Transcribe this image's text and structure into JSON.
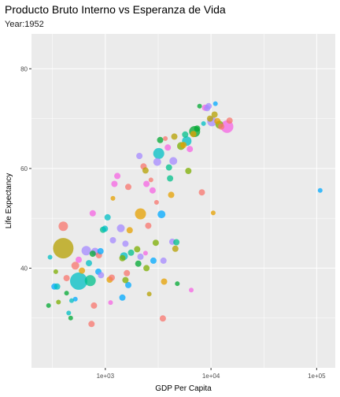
{
  "chart_data": {
    "type": "scatter",
    "title": "Producto Bruto Interno vs Esperanza de Vida",
    "subtitle": "Year:1952",
    "xlabel": "GDP Per Capita",
    "ylabel": "Life Expectancy",
    "x_scale": "log10",
    "xlim": [
      200,
      150000
    ],
    "ylim": [
      20,
      87
    ],
    "x_ticks": [
      {
        "value": 1000,
        "label": "1e+03"
      },
      {
        "value": 10000,
        "label": "1e+04"
      },
      {
        "value": 100000,
        "label": "1e+05"
      }
    ],
    "y_ticks": [
      {
        "value": 40,
        "label": "40"
      },
      {
        "value": 60,
        "label": "60"
      },
      {
        "value": 80,
        "label": "80"
      }
    ],
    "grid": true,
    "legend": "none",
    "background": "#ebebeb",
    "grid_color": "#ffffff",
    "marker_opacity": 0.75,
    "colors": {
      "olive": "#b5a000",
      "teal": "#00bfc4",
      "green": "#00a832",
      "pink": "#f8766d",
      "magenta": "#f564e3",
      "purple": "#a58aff",
      "blue": "#00a9ff",
      "orange": "#e6a000",
      "lime": "#7cae00",
      "mint": "#00c08b"
    },
    "points": [
      {
        "x": 400,
        "y": 44,
        "size": 13,
        "color": "olive"
      },
      {
        "x": 560,
        "y": 37.4,
        "size": 11,
        "color": "teal"
      },
      {
        "x": 720,
        "y": 37.5,
        "size": 7,
        "color": "mint"
      },
      {
        "x": 660,
        "y": 43.5,
        "size": 6,
        "color": "purple"
      },
      {
        "x": 400,
        "y": 48.4,
        "size": 6,
        "color": "pink"
      },
      {
        "x": 330,
        "y": 36.3,
        "size": 4,
        "color": "blue"
      },
      {
        "x": 350,
        "y": 36.3,
        "size": 4,
        "color": "teal"
      },
      {
        "x": 300,
        "y": 42.2,
        "size": 3,
        "color": "teal"
      },
      {
        "x": 340,
        "y": 39.3,
        "size": 3,
        "color": "lime"
      },
      {
        "x": 290,
        "y": 32.5,
        "size": 3,
        "color": "green"
      },
      {
        "x": 360,
        "y": 33.2,
        "size": 3,
        "color": "lime"
      },
      {
        "x": 430,
        "y": 35,
        "size": 3,
        "color": "green"
      },
      {
        "x": 450,
        "y": 31,
        "size": 3,
        "color": "teal"
      },
      {
        "x": 470,
        "y": 30,
        "size": 3,
        "color": "green"
      },
      {
        "x": 520,
        "y": 33.8,
        "size": 3,
        "color": "blue"
      },
      {
        "x": 480,
        "y": 33.5,
        "size": 3,
        "color": "teal"
      },
      {
        "x": 430,
        "y": 38,
        "size": 4,
        "color": "pink"
      },
      {
        "x": 520,
        "y": 40.5,
        "size": 5,
        "color": "pink"
      },
      {
        "x": 600,
        "y": 39.5,
        "size": 4,
        "color": "orange"
      },
      {
        "x": 560,
        "y": 41.7,
        "size": 4,
        "color": "magenta"
      },
      {
        "x": 700,
        "y": 41,
        "size": 4,
        "color": "teal"
      },
      {
        "x": 760,
        "y": 42.9,
        "size": 4,
        "color": "green"
      },
      {
        "x": 800,
        "y": 43.3,
        "size": 5,
        "color": "purple"
      },
      {
        "x": 870,
        "y": 42.6,
        "size": 4,
        "color": "pink"
      },
      {
        "x": 900,
        "y": 43.4,
        "size": 4,
        "color": "blue"
      },
      {
        "x": 760,
        "y": 51,
        "size": 4,
        "color": "magenta"
      },
      {
        "x": 780,
        "y": 32.5,
        "size": 4,
        "color": "pink"
      },
      {
        "x": 740,
        "y": 28.8,
        "size": 4,
        "color": "pink"
      },
      {
        "x": 860,
        "y": 39.3,
        "size": 4,
        "color": "blue"
      },
      {
        "x": 910,
        "y": 38.6,
        "size": 4,
        "color": "purple"
      },
      {
        "x": 950,
        "y": 47.7,
        "size": 4,
        "color": "mint"
      },
      {
        "x": 990,
        "y": 47.9,
        "size": 4,
        "color": "teal"
      },
      {
        "x": 1050,
        "y": 50.2,
        "size": 4,
        "color": "teal"
      },
      {
        "x": 1100,
        "y": 37.7,
        "size": 4,
        "color": "orange"
      },
      {
        "x": 1150,
        "y": 38.1,
        "size": 4,
        "color": "pink"
      },
      {
        "x": 1120,
        "y": 33.1,
        "size": 3,
        "color": "magenta"
      },
      {
        "x": 1180,
        "y": 45.6,
        "size": 4,
        "color": "purple"
      },
      {
        "x": 1220,
        "y": 56.9,
        "size": 4,
        "color": "magenta"
      },
      {
        "x": 1300,
        "y": 58.5,
        "size": 4,
        "color": "magenta"
      },
      {
        "x": 1180,
        "y": 54,
        "size": 3,
        "color": "orange"
      },
      {
        "x": 1400,
        "y": 48,
        "size": 5,
        "color": "purple"
      },
      {
        "x": 1450,
        "y": 42,
        "size": 4,
        "color": "lime"
      },
      {
        "x": 1500,
        "y": 42.4,
        "size": 5,
        "color": "teal"
      },
      {
        "x": 1550,
        "y": 44.9,
        "size": 4,
        "color": "purple"
      },
      {
        "x": 1600,
        "y": 39,
        "size": 4,
        "color": "pink"
      },
      {
        "x": 1650,
        "y": 36.6,
        "size": 4,
        "color": "blue"
      },
      {
        "x": 1550,
        "y": 37.6,
        "size": 4,
        "color": "lime"
      },
      {
        "x": 1450,
        "y": 34.1,
        "size": 4,
        "color": "blue"
      },
      {
        "x": 1700,
        "y": 47.6,
        "size": 4,
        "color": "orange"
      },
      {
        "x": 1750,
        "y": 43.1,
        "size": 4,
        "color": "mint"
      },
      {
        "x": 1650,
        "y": 56.3,
        "size": 4,
        "color": "pink"
      },
      {
        "x": 2000,
        "y": 43.8,
        "size": 4,
        "color": "lime"
      },
      {
        "x": 2150,
        "y": 42.3,
        "size": 4,
        "color": "purple"
      },
      {
        "x": 2150,
        "y": 50.9,
        "size": 7,
        "color": "orange"
      },
      {
        "x": 2050,
        "y": 40.9,
        "size": 4,
        "color": "green"
      },
      {
        "x": 2100,
        "y": 62.5,
        "size": 4,
        "color": "purple"
      },
      {
        "x": 2300,
        "y": 60.4,
        "size": 4,
        "color": "pink"
      },
      {
        "x": 2400,
        "y": 59.6,
        "size": 4,
        "color": "olive"
      },
      {
        "x": 2450,
        "y": 56.9,
        "size": 4,
        "color": "magenta"
      },
      {
        "x": 2550,
        "y": 48.5,
        "size": 4,
        "color": "pink"
      },
      {
        "x": 2400,
        "y": 43,
        "size": 3,
        "color": "magenta"
      },
      {
        "x": 2450,
        "y": 40,
        "size": 4,
        "color": "lime"
      },
      {
        "x": 2600,
        "y": 34.8,
        "size": 3,
        "color": "olive"
      },
      {
        "x": 2700,
        "y": 57.7,
        "size": 3,
        "color": "pink"
      },
      {
        "x": 2800,
        "y": 55.6,
        "size": 4,
        "color": "magenta"
      },
      {
        "x": 2850,
        "y": 41.5,
        "size": 4,
        "color": "blue"
      },
      {
        "x": 3000,
        "y": 45.1,
        "size": 4,
        "color": "lime"
      },
      {
        "x": 3050,
        "y": 53.2,
        "size": 3,
        "color": "pink"
      },
      {
        "x": 3100,
        "y": 61.3,
        "size": 5,
        "color": "purple"
      },
      {
        "x": 3200,
        "y": 63,
        "size": 7,
        "color": "teal"
      },
      {
        "x": 3300,
        "y": 65.7,
        "size": 4,
        "color": "green"
      },
      {
        "x": 3400,
        "y": 50.8,
        "size": 5,
        "color": "blue"
      },
      {
        "x": 3500,
        "y": 29.9,
        "size": 4,
        "color": "pink"
      },
      {
        "x": 3550,
        "y": 41.5,
        "size": 4,
        "color": "purple"
      },
      {
        "x": 3600,
        "y": 37.3,
        "size": 4,
        "color": "orange"
      },
      {
        "x": 3700,
        "y": 66,
        "size": 3,
        "color": "pink"
      },
      {
        "x": 3900,
        "y": 64.2,
        "size": 4,
        "color": "magenta"
      },
      {
        "x": 4000,
        "y": 60.2,
        "size": 4,
        "color": "mint"
      },
      {
        "x": 4100,
        "y": 58,
        "size": 4,
        "color": "mint"
      },
      {
        "x": 4200,
        "y": 54.7,
        "size": 4,
        "color": "orange"
      },
      {
        "x": 4300,
        "y": 45.3,
        "size": 4,
        "color": "purple"
      },
      {
        "x": 4400,
        "y": 61.5,
        "size": 5,
        "color": "purple"
      },
      {
        "x": 4500,
        "y": 66.4,
        "size": 4,
        "color": "olive"
      },
      {
        "x": 4600,
        "y": 43.9,
        "size": 4,
        "color": "olive"
      },
      {
        "x": 4700,
        "y": 45.2,
        "size": 4,
        "color": "mint"
      },
      {
        "x": 4800,
        "y": 36.9,
        "size": 3,
        "color": "green"
      },
      {
        "x": 5200,
        "y": 64.5,
        "size": 5,
        "color": "lime"
      },
      {
        "x": 5500,
        "y": 64.7,
        "size": 4,
        "color": "orange"
      },
      {
        "x": 5700,
        "y": 66.8,
        "size": 4,
        "color": "mint"
      },
      {
        "x": 5900,
        "y": 65.5,
        "size": 6,
        "color": "teal"
      },
      {
        "x": 6100,
        "y": 59.5,
        "size": 4,
        "color": "lime"
      },
      {
        "x": 6300,
        "y": 63.9,
        "size": 4,
        "color": "magenta"
      },
      {
        "x": 6500,
        "y": 35.6,
        "size": 3,
        "color": "magenta"
      },
      {
        "x": 6800,
        "y": 66.9,
        "size": 4,
        "color": "orange"
      },
      {
        "x": 7000,
        "y": 67.4,
        "size": 7,
        "color": "green"
      },
      {
        "x": 7400,
        "y": 68,
        "size": 4,
        "color": "green"
      },
      {
        "x": 7800,
        "y": 72.5,
        "size": 3,
        "color": "green"
      },
      {
        "x": 8200,
        "y": 55.2,
        "size": 4,
        "color": "pink"
      },
      {
        "x": 8500,
        "y": 69,
        "size": 3,
        "color": "teal"
      },
      {
        "x": 8800,
        "y": 72.2,
        "size": 4,
        "color": "magenta"
      },
      {
        "x": 9200,
        "y": 72.1,
        "size": 4,
        "color": "purple"
      },
      {
        "x": 9500,
        "y": 72.5,
        "size": 4,
        "color": "purple"
      },
      {
        "x": 9800,
        "y": 70,
        "size": 4,
        "color": "olive"
      },
      {
        "x": 10200,
        "y": 69.4,
        "size": 6,
        "color": "purple"
      },
      {
        "x": 10500,
        "y": 51.1,
        "size": 3,
        "color": "orange"
      },
      {
        "x": 10800,
        "y": 70.8,
        "size": 4,
        "color": "olive"
      },
      {
        "x": 11000,
        "y": 73,
        "size": 3,
        "color": "blue"
      },
      {
        "x": 11500,
        "y": 69.5,
        "size": 4,
        "color": "orange"
      },
      {
        "x": 12000,
        "y": 68.8,
        "size": 5,
        "color": "lime"
      },
      {
        "x": 12500,
        "y": 68.4,
        "size": 4,
        "color": "pink"
      },
      {
        "x": 14200,
        "y": 68.4,
        "size": 8,
        "color": "magenta"
      },
      {
        "x": 15000,
        "y": 69.6,
        "size": 4,
        "color": "pink"
      },
      {
        "x": 108000,
        "y": 55.6,
        "size": 3,
        "color": "blue"
      }
    ]
  }
}
